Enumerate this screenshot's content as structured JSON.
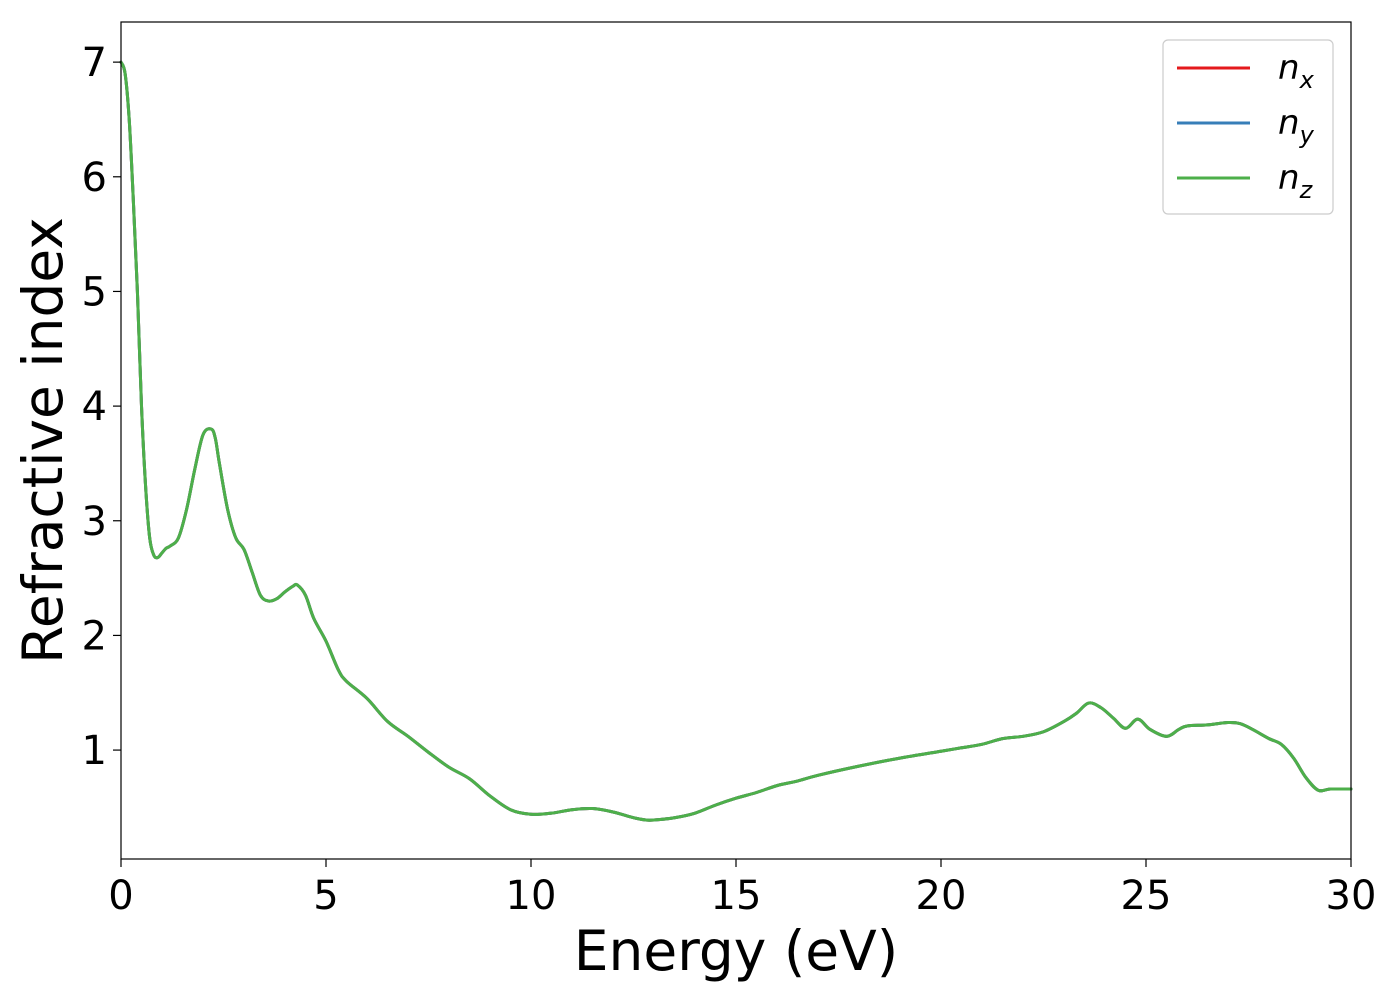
{
  "chart_data": {
    "type": "line",
    "title": "",
    "xlabel": "Energy (eV)",
    "ylabel": "Refractive index",
    "xlim": [
      0,
      30
    ],
    "ylim": [
      0.05,
      7.35
    ],
    "grid": false,
    "legend_position": "top-right",
    "xticks": [
      0,
      5,
      10,
      15,
      20,
      25,
      30
    ],
    "xtick_labels": [
      "0",
      "5",
      "10",
      "15",
      "20",
      "25",
      "30"
    ],
    "yticks": [
      1,
      2,
      3,
      4,
      5,
      6,
      7
    ],
    "ytick_labels": [
      "1",
      "2",
      "3",
      "4",
      "5",
      "6",
      "7"
    ],
    "x": [
      0,
      0.1,
      0.2,
      0.3,
      0.4,
      0.5,
      0.6,
      0.7,
      0.8,
      0.9,
      1.0,
      1.1,
      1.2,
      1.4,
      1.6,
      1.8,
      2.0,
      2.2,
      2.3,
      2.4,
      2.6,
      2.8,
      3.0,
      3.2,
      3.4,
      3.6,
      3.8,
      4.0,
      4.2,
      4.3,
      4.5,
      4.7,
      5.0,
      5.3,
      5.5,
      6.0,
      6.5,
      7.0,
      7.5,
      8.0,
      8.5,
      9.0,
      9.5,
      10.0,
      10.5,
      11.0,
      11.5,
      12.0,
      12.5,
      12.8,
      13.0,
      13.5,
      14.0,
      14.5,
      15.0,
      15.5,
      16.0,
      16.5,
      17.0,
      18.0,
      19.0,
      20.0,
      20.5,
      21.0,
      21.5,
      22.0,
      22.5,
      23.0,
      23.3,
      23.6,
      23.9,
      24.2,
      24.5,
      24.8,
      25.1,
      25.5,
      25.8,
      26.0,
      26.5,
      27.0,
      27.3,
      27.6,
      28.0,
      28.3,
      28.6,
      28.9,
      29.2,
      29.5,
      30.0
    ],
    "series": [
      {
        "name": "n_x",
        "label_base": "n",
        "label_sub": "x",
        "color": "#e41a1c",
        "values": [
          7.0,
          6.9,
          6.5,
          5.8,
          5.0,
          4.0,
          3.3,
          2.85,
          2.7,
          2.68,
          2.72,
          2.76,
          2.78,
          2.85,
          3.1,
          3.45,
          3.75,
          3.8,
          3.72,
          3.5,
          3.1,
          2.85,
          2.75,
          2.55,
          2.35,
          2.3,
          2.32,
          2.38,
          2.43,
          2.44,
          2.35,
          2.15,
          1.95,
          1.7,
          1.6,
          1.45,
          1.25,
          1.12,
          0.98,
          0.85,
          0.75,
          0.6,
          0.48,
          0.44,
          0.45,
          0.48,
          0.49,
          0.46,
          0.41,
          0.39,
          0.39,
          0.41,
          0.45,
          0.52,
          0.58,
          0.63,
          0.69,
          0.73,
          0.78,
          0.86,
          0.93,
          0.99,
          1.02,
          1.05,
          1.1,
          1.12,
          1.16,
          1.25,
          1.32,
          1.41,
          1.37,
          1.28,
          1.19,
          1.27,
          1.18,
          1.12,
          1.18,
          1.21,
          1.22,
          1.24,
          1.23,
          1.18,
          1.1,
          1.05,
          0.93,
          0.76,
          0.65,
          0.66,
          0.66
        ]
      },
      {
        "name": "n_y",
        "label_base": "n",
        "label_sub": "y",
        "color": "#377eb8",
        "values": [
          7.0,
          6.9,
          6.5,
          5.8,
          5.0,
          4.0,
          3.3,
          2.85,
          2.7,
          2.68,
          2.72,
          2.76,
          2.78,
          2.85,
          3.1,
          3.45,
          3.75,
          3.8,
          3.72,
          3.5,
          3.1,
          2.85,
          2.75,
          2.55,
          2.35,
          2.3,
          2.32,
          2.38,
          2.43,
          2.44,
          2.35,
          2.15,
          1.95,
          1.7,
          1.6,
          1.45,
          1.25,
          1.12,
          0.98,
          0.85,
          0.75,
          0.6,
          0.48,
          0.44,
          0.45,
          0.48,
          0.49,
          0.46,
          0.41,
          0.39,
          0.39,
          0.41,
          0.45,
          0.52,
          0.58,
          0.63,
          0.69,
          0.73,
          0.78,
          0.86,
          0.93,
          0.99,
          1.02,
          1.05,
          1.1,
          1.12,
          1.16,
          1.25,
          1.32,
          1.41,
          1.37,
          1.28,
          1.19,
          1.27,
          1.18,
          1.12,
          1.18,
          1.21,
          1.22,
          1.24,
          1.23,
          1.18,
          1.1,
          1.05,
          0.93,
          0.76,
          0.65,
          0.66,
          0.66
        ]
      },
      {
        "name": "n_z",
        "label_base": "n",
        "label_sub": "z",
        "color": "#4daf4a",
        "values": [
          7.0,
          6.9,
          6.5,
          5.8,
          5.0,
          4.0,
          3.3,
          2.85,
          2.7,
          2.68,
          2.72,
          2.76,
          2.78,
          2.85,
          3.1,
          3.45,
          3.75,
          3.8,
          3.72,
          3.5,
          3.1,
          2.85,
          2.75,
          2.55,
          2.35,
          2.3,
          2.32,
          2.38,
          2.43,
          2.44,
          2.35,
          2.15,
          1.95,
          1.7,
          1.6,
          1.45,
          1.25,
          1.12,
          0.98,
          0.85,
          0.75,
          0.6,
          0.48,
          0.44,
          0.45,
          0.48,
          0.49,
          0.46,
          0.41,
          0.39,
          0.39,
          0.41,
          0.45,
          0.52,
          0.58,
          0.63,
          0.69,
          0.73,
          0.78,
          0.86,
          0.93,
          0.99,
          1.02,
          1.05,
          1.1,
          1.12,
          1.16,
          1.25,
          1.32,
          1.41,
          1.37,
          1.28,
          1.19,
          1.27,
          1.18,
          1.12,
          1.18,
          1.21,
          1.22,
          1.24,
          1.23,
          1.18,
          1.1,
          1.05,
          0.93,
          0.76,
          0.65,
          0.66,
          0.66
        ]
      }
    ]
  }
}
